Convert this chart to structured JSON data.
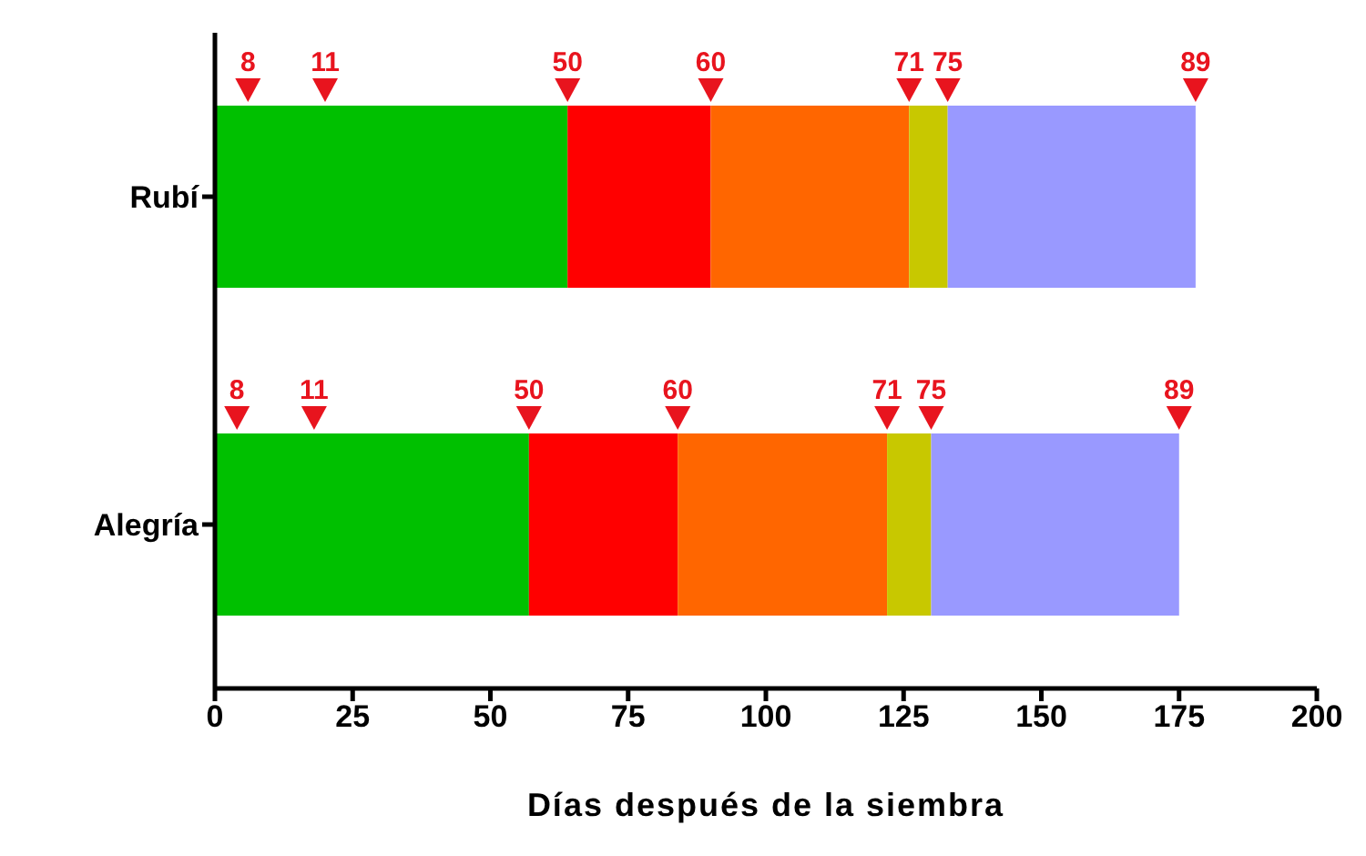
{
  "chart_data": {
    "type": "bar",
    "orientation": "horizontal",
    "stacked": true,
    "categories": [
      "Rubí",
      "Alegría"
    ],
    "series": [
      {
        "color": "#00c000",
        "values": [
          64,
          57
        ]
      },
      {
        "color": "#ff0000",
        "values": [
          26,
          27
        ]
      },
      {
        "color": "#ff6600",
        "values": [
          36,
          38
        ]
      },
      {
        "color": "#c8c800",
        "values": [
          7,
          8
        ]
      },
      {
        "color": "#9999ff",
        "values": [
          45,
          45
        ]
      },
      {
        "type": "scatter",
        "name": "8",
        "color": "#e8141e",
        "marker": "triangle",
        "x": [
          "Rubí",
          "Alegría"
        ],
        "values": [
          6,
          4
        ]
      },
      {
        "type": "scatter",
        "name": "11",
        "color": "#e8141e",
        "marker": "triangle",
        "x": [
          "Rubí",
          "Alegría"
        ],
        "values": [
          20,
          18
        ]
      },
      {
        "type": "scatter",
        "name": "50",
        "color": "#e8141e",
        "marker": "triangle",
        "x": [
          "Rubí",
          "Alegría"
        ],
        "values": [
          64,
          57
        ]
      },
      {
        "type": "scatter",
        "name": "60",
        "color": "#e8141e",
        "marker": "triangle",
        "x": [
          "Rubí",
          "Alegría"
        ],
        "values": [
          90,
          84
        ]
      },
      {
        "type": "scatter",
        "name": "71",
        "color": "#e8141e",
        "marker": "triangle",
        "x": [
          "Rubí",
          "Alegría"
        ],
        "values": [
          126,
          122
        ]
      },
      {
        "type": "scatter",
        "name": "75",
        "color": "#e8141e",
        "marker": "triangle",
        "x": [
          "Rubí",
          "Alegría"
        ],
        "values": [
          133,
          130
        ]
      },
      {
        "type": "scatter",
        "name": "89",
        "color": "#e8141e",
        "marker": "triangle",
        "x": [
          "Rubí",
          "Alegría"
        ],
        "values": [
          178,
          175
        ]
      }
    ],
    "xlim": [
      0,
      200
    ],
    "xticks": [
      0,
      25,
      50,
      75,
      100,
      125,
      150,
      175,
      200
    ],
    "xlabel": "Días después de la siembra",
    "grid": false,
    "legend": false
  }
}
